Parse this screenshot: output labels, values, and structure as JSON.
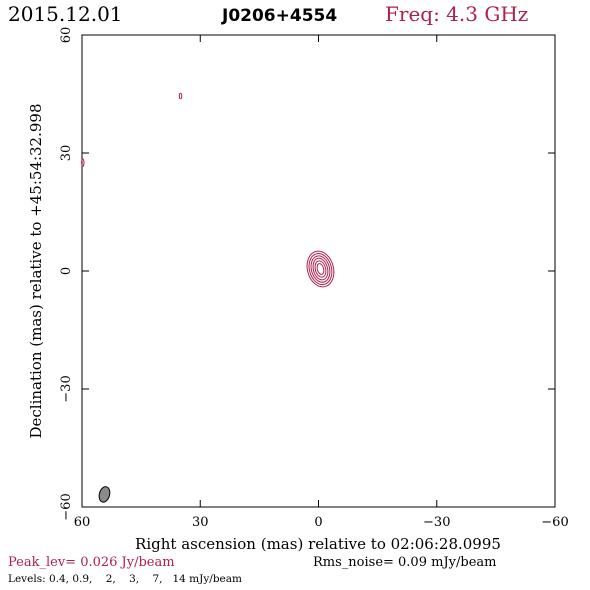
{
  "header": {
    "date": "2015.12.01",
    "source": "J0206+4554",
    "freq": "Freq: 4.3 GHz"
  },
  "footer": {
    "peak": "Peak_lev=  0.026 Jy/beam",
    "rms": "Rms_noise= 0.09 mJy/beam",
    "levels": "Levels: 0.4, 0.9,    2,    3,    7,   14 mJy/beam"
  },
  "colors": {
    "contour": "#b0204a",
    "header_accent": "#b0204a",
    "frame": "#000000",
    "beam_fill": "#8a8a8a"
  },
  "chart_data": {
    "type": "contour",
    "xlabel": "Right ascension (mas) relative to 02:06:28.0995",
    "ylabel": "Declination (mas) relative to +45:54:32.998",
    "xlim": [
      60,
      -60
    ],
    "ylim": [
      -60,
      60
    ],
    "x_ticks": [
      60,
      30,
      0,
      -30,
      -60
    ],
    "y_ticks": [
      -60,
      -30,
      0,
      30,
      60
    ],
    "x_tick_labels": [
      "60",
      "30",
      "0",
      "−30",
      "−60"
    ],
    "y_tick_labels": [
      "−60",
      "−30",
      "0",
      "30",
      "60"
    ],
    "levels_mJy": [
      0.4,
      0.9,
      2,
      3,
      7,
      14
    ],
    "components": [
      {
        "name": "core",
        "x": -0.5,
        "y": 0.5,
        "contours": [
          {
            "level": 0.4,
            "rx": 3.3,
            "ry": 4.6,
            "angle": -15
          },
          {
            "level": 0.9,
            "rx": 2.8,
            "ry": 4.0,
            "angle": -15
          },
          {
            "level": 2,
            "rx": 2.3,
            "ry": 3.4,
            "angle": -15
          },
          {
            "level": 3,
            "rx": 1.8,
            "ry": 2.8,
            "angle": -15
          },
          {
            "level": 7,
            "rx": 1.3,
            "ry": 2.1,
            "angle": -15
          },
          {
            "level": 14,
            "rx": 0.8,
            "ry": 1.4,
            "angle": -15
          }
        ]
      },
      {
        "name": "spot-1",
        "x": 35,
        "y": 44.5,
        "contours": [
          {
            "level": 0.4,
            "rx": 0.3,
            "ry": 0.7,
            "angle": 0
          }
        ]
      },
      {
        "name": "spot-2",
        "x": 59.8,
        "y": 27.5,
        "contours": [
          {
            "level": 0.4,
            "rx": 0.3,
            "ry": 0.9,
            "angle": 0
          }
        ]
      }
    ],
    "beam": {
      "x": 54.3,
      "y": -56.8,
      "rx": 1.3,
      "ry": 2.0,
      "angle": 15
    }
  }
}
